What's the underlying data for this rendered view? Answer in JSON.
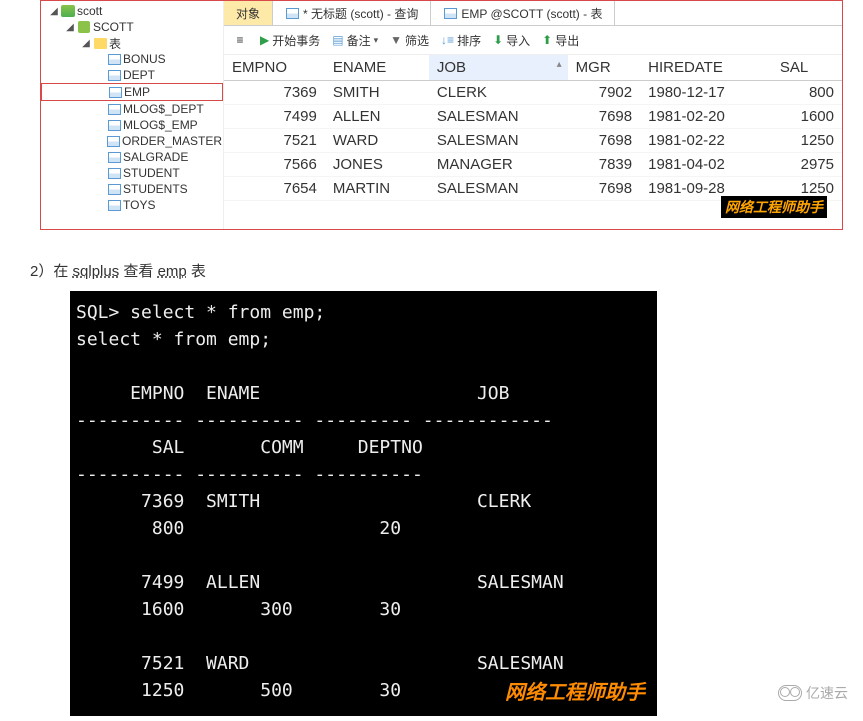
{
  "tree": {
    "root": "scott",
    "schema": "SCOTT",
    "folder": "表",
    "tables": [
      "BONUS",
      "DEPT",
      "EMP",
      "MLOG$_DEPT",
      "MLOG$_EMP",
      "ORDER_MASTER",
      "SALGRADE",
      "STUDENT",
      "STUDENTS",
      "TOYS"
    ],
    "selected": "EMP"
  },
  "tabs": [
    {
      "label": "对象",
      "active": true
    },
    {
      "label": "* 无标题 (scott) - 查询",
      "active": false
    },
    {
      "label": "EMP @SCOTT (scott) - 表",
      "active": false
    }
  ],
  "toolbar": {
    "begin": "开始事务",
    "memo": "备注",
    "filter": "筛选",
    "sort": "排序",
    "import": "导入",
    "export": "导出"
  },
  "grid": {
    "columns": [
      "EMPNO",
      "ENAME",
      "JOB",
      "MGR",
      "HIREDATE",
      "SAL"
    ],
    "sortCol": "JOB",
    "rows": [
      {
        "EMPNO": "7369",
        "ENAME": "SMITH",
        "JOB": "CLERK",
        "MGR": "7902",
        "HIREDATE": "1980-12-17",
        "SAL": "800"
      },
      {
        "EMPNO": "7499",
        "ENAME": "ALLEN",
        "JOB": "SALESMAN",
        "MGR": "7698",
        "HIREDATE": "1981-02-20",
        "SAL": "1600"
      },
      {
        "EMPNO": "7521",
        "ENAME": "WARD",
        "JOB": "SALESMAN",
        "MGR": "7698",
        "HIREDATE": "1981-02-22",
        "SAL": "1250"
      },
      {
        "EMPNO": "7566",
        "ENAME": "JONES",
        "JOB": "MANAGER",
        "MGR": "7839",
        "HIREDATE": "1981-04-02",
        "SAL": "2975"
      },
      {
        "EMPNO": "7654",
        "ENAME": "MARTIN",
        "JOB": "SALESMAN",
        "MGR": "7698",
        "HIREDATE": "1981-09-28",
        "SAL": "1250"
      }
    ]
  },
  "watermark": "网络工程师助手",
  "caption": {
    "prefix": "2）在 ",
    "sqlplus": "sqlplus",
    "mid": " 查看 ",
    "emp": "emp",
    "suffix": " 表"
  },
  "terminal": {
    "prompt": "SQL> select * from emp;",
    "echo": "select * from emp;",
    "hdr1_empno": "EMPNO",
    "hdr1_ename": "ENAME",
    "hdr1_job": "JOB",
    "hdr2_sal": "SAL",
    "hdr2_comm": "COMM",
    "hdr2_deptno": "DEPTNO",
    "rows": [
      {
        "empno": "7369",
        "ename": "SMITH",
        "job": "CLERK",
        "sal": "800",
        "comm": "",
        "deptno": "20"
      },
      {
        "empno": "7499",
        "ename": "ALLEN",
        "job": "SALESMAN",
        "sal": "1600",
        "comm": "300",
        "deptno": "30"
      },
      {
        "empno": "7521",
        "ename": "WARD",
        "job": "SALESMAN",
        "sal": "1250",
        "comm": "500",
        "deptno": "30"
      }
    ]
  },
  "footerLogo": "亿速云"
}
